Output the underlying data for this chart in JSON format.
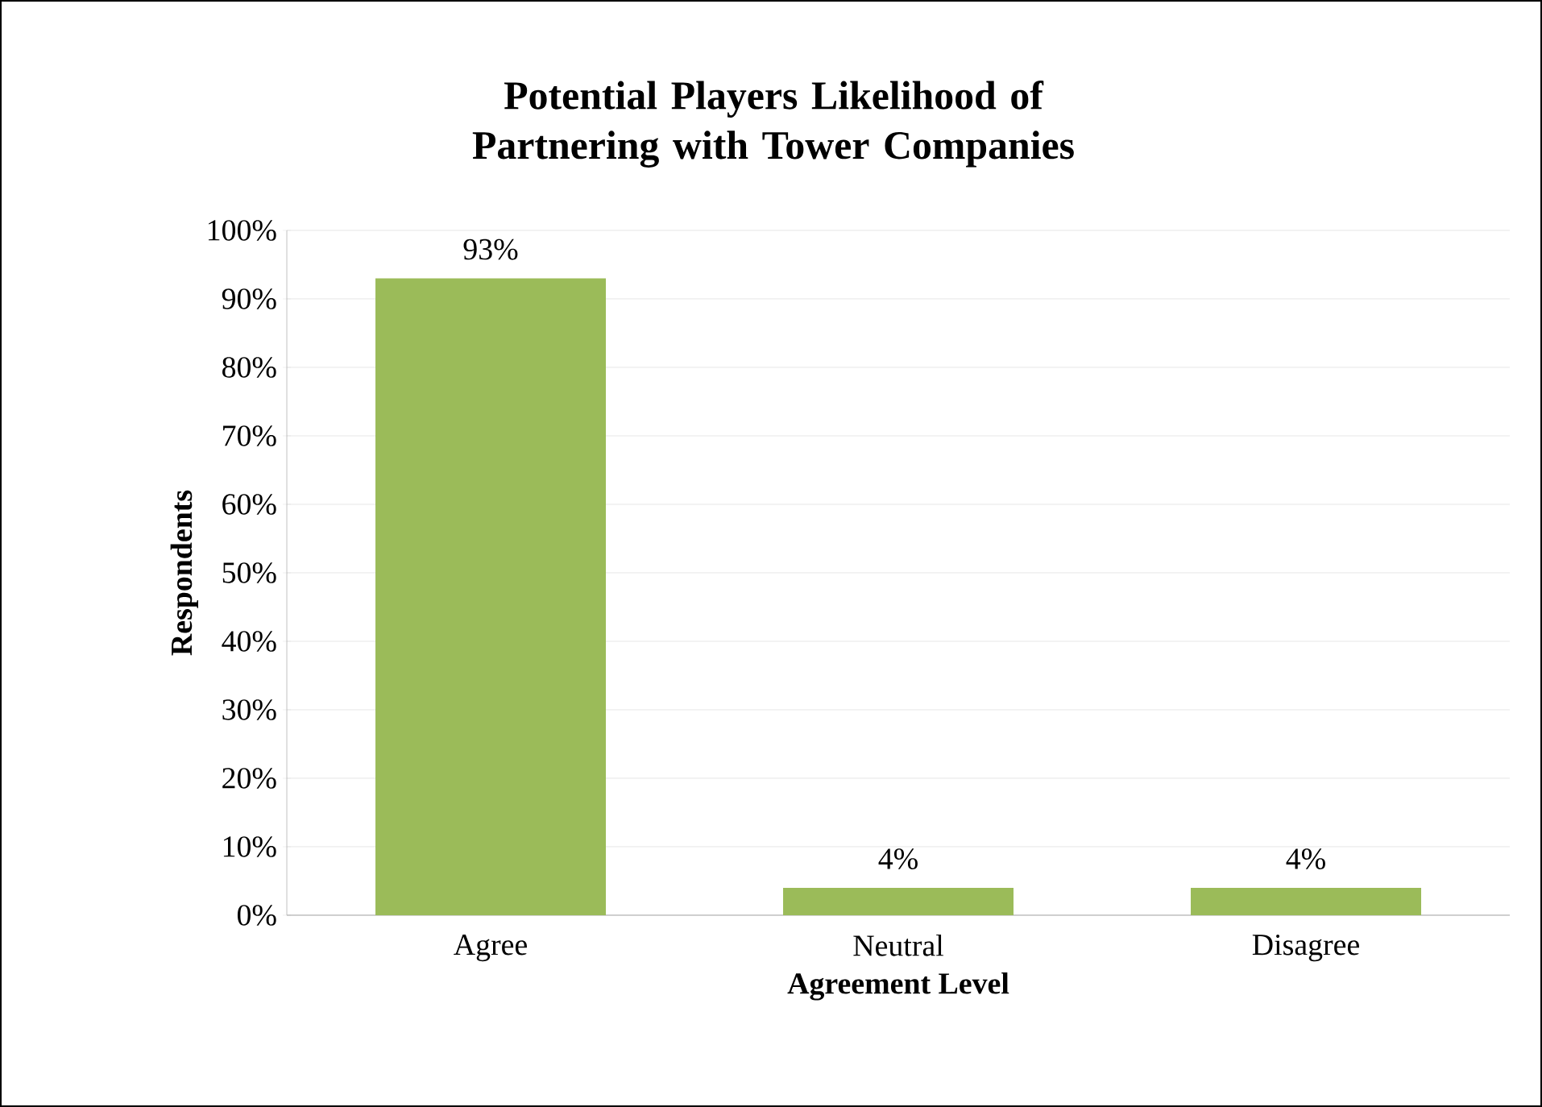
{
  "chart_data": {
    "type": "bar",
    "title": "Potential Players Likelihood of Partnering with Tower Companies",
    "xlabel": "Agreement Level",
    "ylabel": "Respondents",
    "categories": [
      "Agree",
      "Neutral",
      "Disagree"
    ],
    "values": [
      93,
      4,
      4
    ],
    "value_labels": [
      "93%",
      "4%",
      "4%"
    ],
    "color": "#9bbb59",
    "ylim": [
      0,
      100
    ],
    "yticks": [
      {
        "value": 0,
        "label": "0%"
      },
      {
        "value": 10,
        "label": "10%"
      },
      {
        "value": 20,
        "label": "20%"
      },
      {
        "value": 30,
        "label": "30%"
      },
      {
        "value": 40,
        "label": "40%"
      },
      {
        "value": 50,
        "label": "50%"
      },
      {
        "value": 60,
        "label": "60%"
      },
      {
        "value": 70,
        "label": "70%"
      },
      {
        "value": 80,
        "label": "80%"
      },
      {
        "value": 90,
        "label": "90%"
      },
      {
        "value": 100,
        "label": "100%"
      }
    ],
    "grid": "y"
  }
}
